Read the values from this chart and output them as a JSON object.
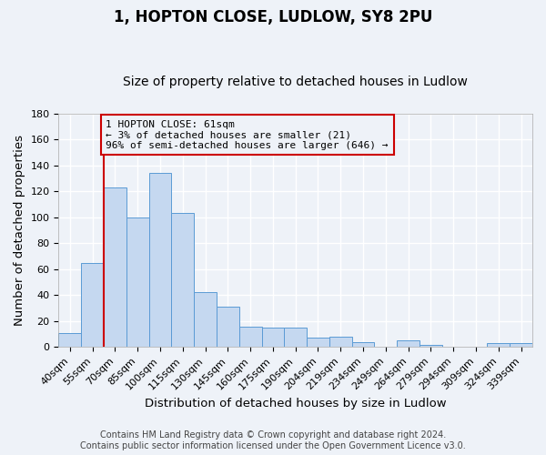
{
  "title": "1, HOPTON CLOSE, LUDLOW, SY8 2PU",
  "subtitle": "Size of property relative to detached houses in Ludlow",
  "xlabel": "Distribution of detached houses by size in Ludlow",
  "ylabel": "Number of detached properties",
  "bar_labels": [
    "40sqm",
    "55sqm",
    "70sqm",
    "85sqm",
    "100sqm",
    "115sqm",
    "130sqm",
    "145sqm",
    "160sqm",
    "175sqm",
    "190sqm",
    "204sqm",
    "219sqm",
    "234sqm",
    "249sqm",
    "264sqm",
    "279sqm",
    "294sqm",
    "309sqm",
    "324sqm",
    "339sqm"
  ],
  "bar_values": [
    11,
    65,
    123,
    100,
    134,
    103,
    42,
    31,
    16,
    15,
    15,
    7,
    8,
    4,
    0,
    5,
    2,
    0,
    0,
    3,
    3
  ],
  "bar_color": "#c5d8f0",
  "bar_edge_color": "#5b9bd5",
  "ylim": [
    0,
    180
  ],
  "yticks": [
    0,
    20,
    40,
    60,
    80,
    100,
    120,
    140,
    160,
    180
  ],
  "vline_x": 1.5,
  "vline_color": "#cc0000",
  "annotation_text": "1 HOPTON CLOSE: 61sqm\n← 3% of detached houses are smaller (21)\n96% of semi-detached houses are larger (646) →",
  "annotation_box_color": "#cc0000",
  "footer_line1": "Contains HM Land Registry data © Crown copyright and database right 2024.",
  "footer_line2": "Contains public sector information licensed under the Open Government Licence v3.0.",
  "background_color": "#eef2f8",
  "grid_color": "#d8dfe8",
  "title_fontsize": 12,
  "subtitle_fontsize": 10,
  "axis_label_fontsize": 9.5,
  "tick_fontsize": 8,
  "footer_fontsize": 7
}
